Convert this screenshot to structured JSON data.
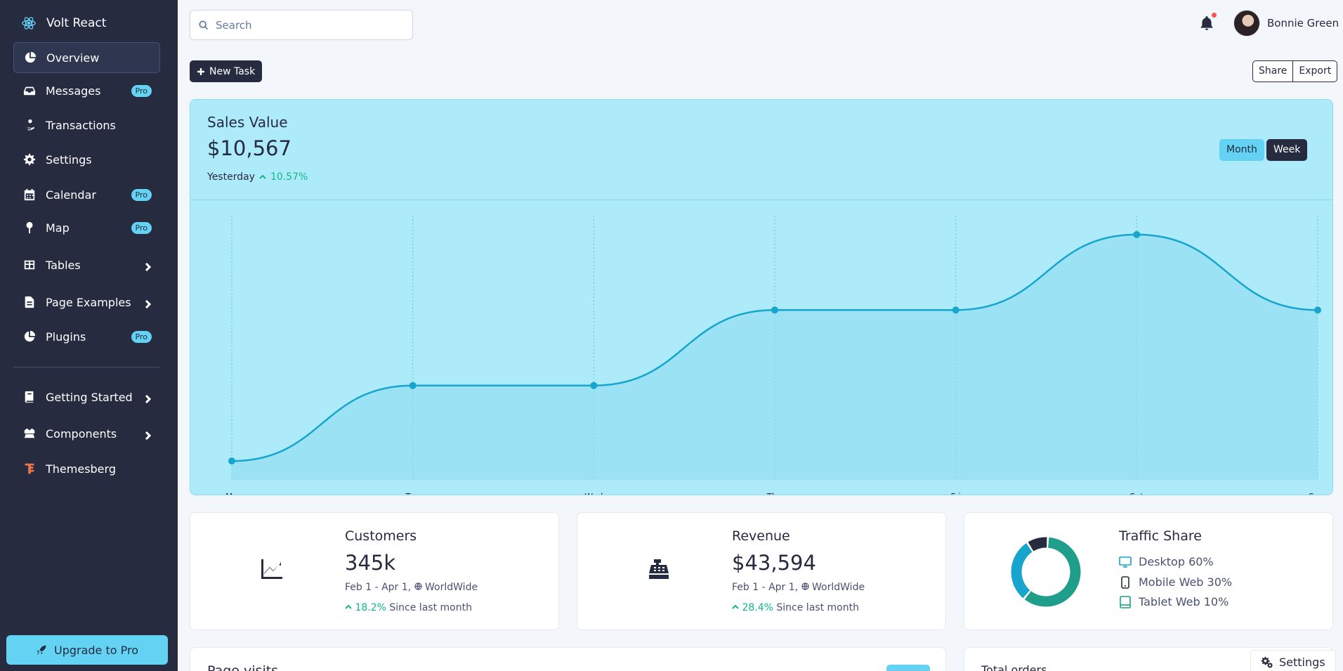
{
  "brand": {
    "name": "Volt React"
  },
  "sidebar": {
    "items": [
      {
        "label": "Overview",
        "icon": "pie-chart-icon",
        "active": true
      },
      {
        "label": "Messages",
        "icon": "inbox-icon",
        "badge": "Pro"
      },
      {
        "label": "Transactions",
        "icon": "hand-coin-icon"
      },
      {
        "label": "Settings",
        "icon": "gear-icon"
      },
      {
        "label": "Calendar",
        "icon": "calendar-icon",
        "badge": "Pro"
      },
      {
        "label": "Map",
        "icon": "map-pin-icon",
        "badge": "Pro"
      },
      {
        "label": "Tables",
        "icon": "table-icon",
        "chevron": true
      },
      {
        "label": "Page Examples",
        "icon": "file-icon",
        "chevron": true
      },
      {
        "label": "Plugins",
        "icon": "pie-chart-icon",
        "badge": "Pro"
      },
      {
        "label": "Getting Started",
        "icon": "book-icon",
        "chevron": true
      },
      {
        "label": "Components",
        "icon": "boxes-icon",
        "chevron": true
      },
      {
        "label": "Themesberg",
        "icon": "themesberg-logo-icon"
      }
    ],
    "upgrade_label": "Upgrade to Pro"
  },
  "topbar": {
    "search_placeholder": "Search",
    "user_name": "Bonnie Green"
  },
  "toolbar": {
    "new_task_label": "New Task",
    "share_label": "Share",
    "export_label": "Export"
  },
  "sales": {
    "title": "Sales Value",
    "value": "$10,567",
    "period_label": "Yesterday",
    "change": "10.57%",
    "month_label": "Month",
    "week_label": "Week"
  },
  "chart_data": {
    "type": "area",
    "categories": [
      "Mon",
      "Tue",
      "Wed",
      "Thu",
      "Fri",
      "Sat",
      "Sun"
    ],
    "series": [
      {
        "values": [
          1,
          2,
          2,
          3,
          3,
          4,
          3
        ]
      }
    ],
    "ylim": [
      0.75,
      4.25
    ],
    "grid": "vertical-dashed",
    "line_color": "#17a5ce"
  },
  "cards": {
    "customers": {
      "title": "Customers",
      "value": "345k",
      "range": "Feb 1 - Apr 1,",
      "region": "WorldWide",
      "change": "18.2%",
      "since": "Since last month"
    },
    "revenue": {
      "title": "Revenue",
      "value": "$43,594",
      "range": "Feb 1 - Apr 1,",
      "region": "WorldWide",
      "change": "28.4%",
      "since": "Since last month"
    },
    "traffic": {
      "title": "Traffic Share",
      "items": [
        {
          "label": "Desktop 60%",
          "value": 60,
          "color": "#1e9e8b"
        },
        {
          "label": "Mobile Web 30%",
          "value": 30,
          "color": "#17a5ce"
        },
        {
          "label": "Tablet Web 10%",
          "value": 10,
          "color": "#262b40"
        }
      ]
    }
  },
  "bottom": {
    "page_visits_title": "Page visits",
    "total_orders_title": "Total orders",
    "settings_label": "Settings"
  }
}
